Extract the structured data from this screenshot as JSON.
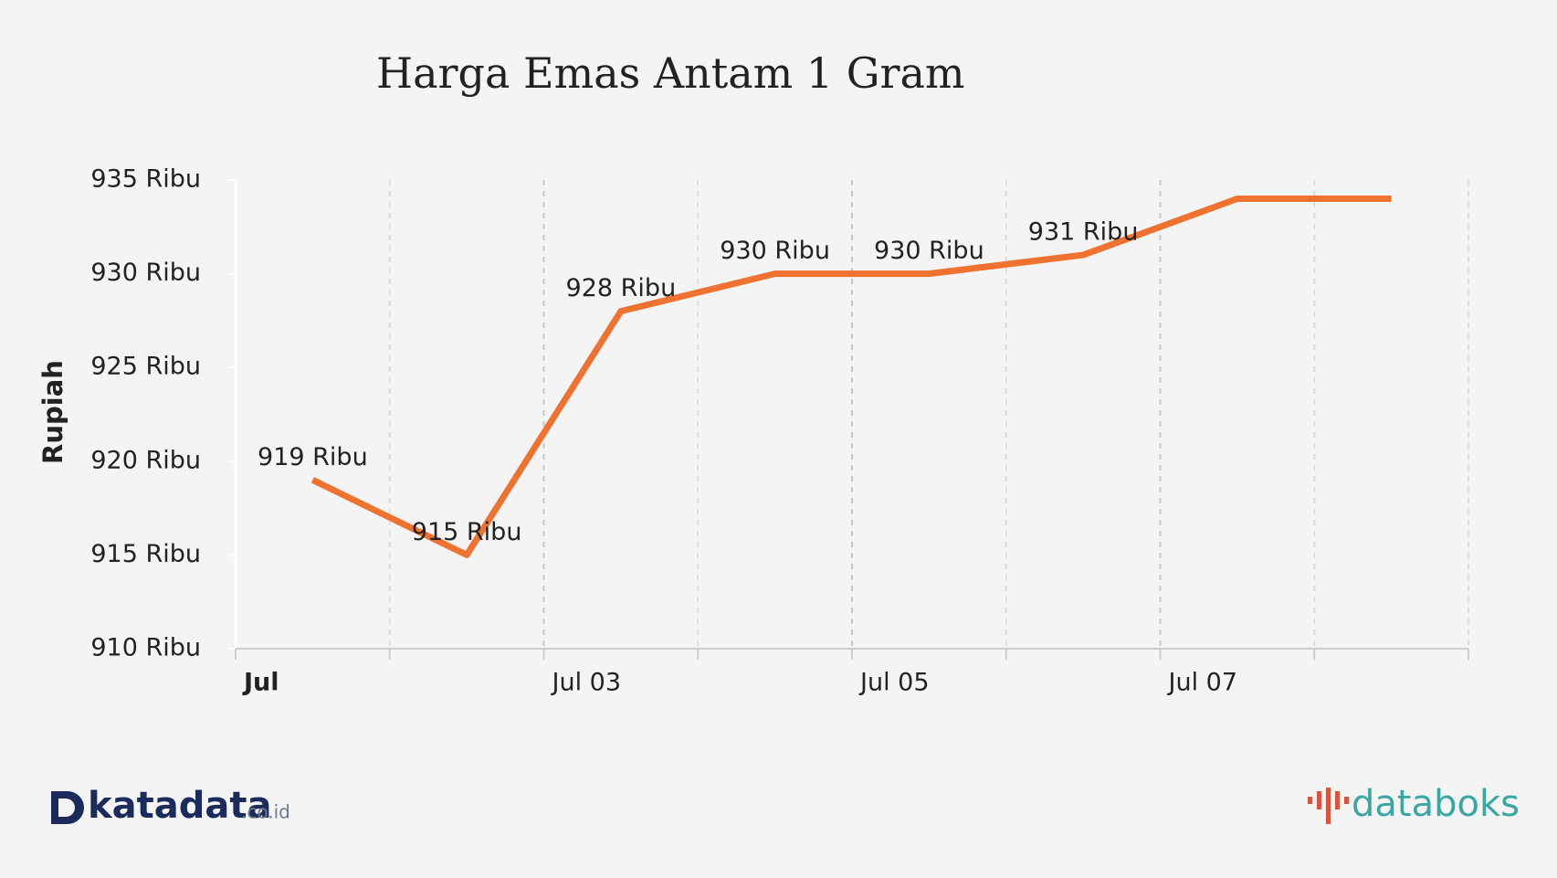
{
  "chart_data": {
    "type": "line",
    "title": "Harga Emas Antam 1 Gram",
    "ylabel": "Rupiah",
    "x": [
      1.5,
      2.5,
      3.5,
      4.5,
      5.5,
      6.5,
      7.5,
      8.5
    ],
    "values": [
      919,
      915,
      928,
      930,
      930,
      931,
      934,
      934
    ],
    "value_labels": [
      "919 Ribu",
      "915 Ribu",
      "928 Ribu",
      "930 Ribu",
      "930 Ribu",
      "931 Ribu",
      null,
      null
    ],
    "color": "#f07230",
    "xlim": [
      1,
      9
    ],
    "xticks": [
      {
        "value": 1,
        "label": "Jul"
      },
      {
        "value": 3,
        "label": "Jul 03"
      },
      {
        "value": 5,
        "label": "Jul 05"
      },
      {
        "value": 7,
        "label": "Jul 07"
      }
    ],
    "x_minor_ticks": [
      2,
      4,
      6,
      8,
      9
    ],
    "ylim": [
      910,
      935
    ],
    "yticks": [
      {
        "value": 910,
        "label": "910 Ribu"
      },
      {
        "value": 915,
        "label": "915 Ribu"
      },
      {
        "value": 920,
        "label": "920 Ribu"
      },
      {
        "value": 925,
        "label": "925 Ribu"
      },
      {
        "value": 930,
        "label": "930 Ribu"
      },
      {
        "value": 935,
        "label": "935 Ribu"
      }
    ],
    "grid": true
  },
  "footer": {
    "left_logo": "katadata",
    "left_logo_suffix": ".co.id",
    "right_logo": "databoks"
  }
}
